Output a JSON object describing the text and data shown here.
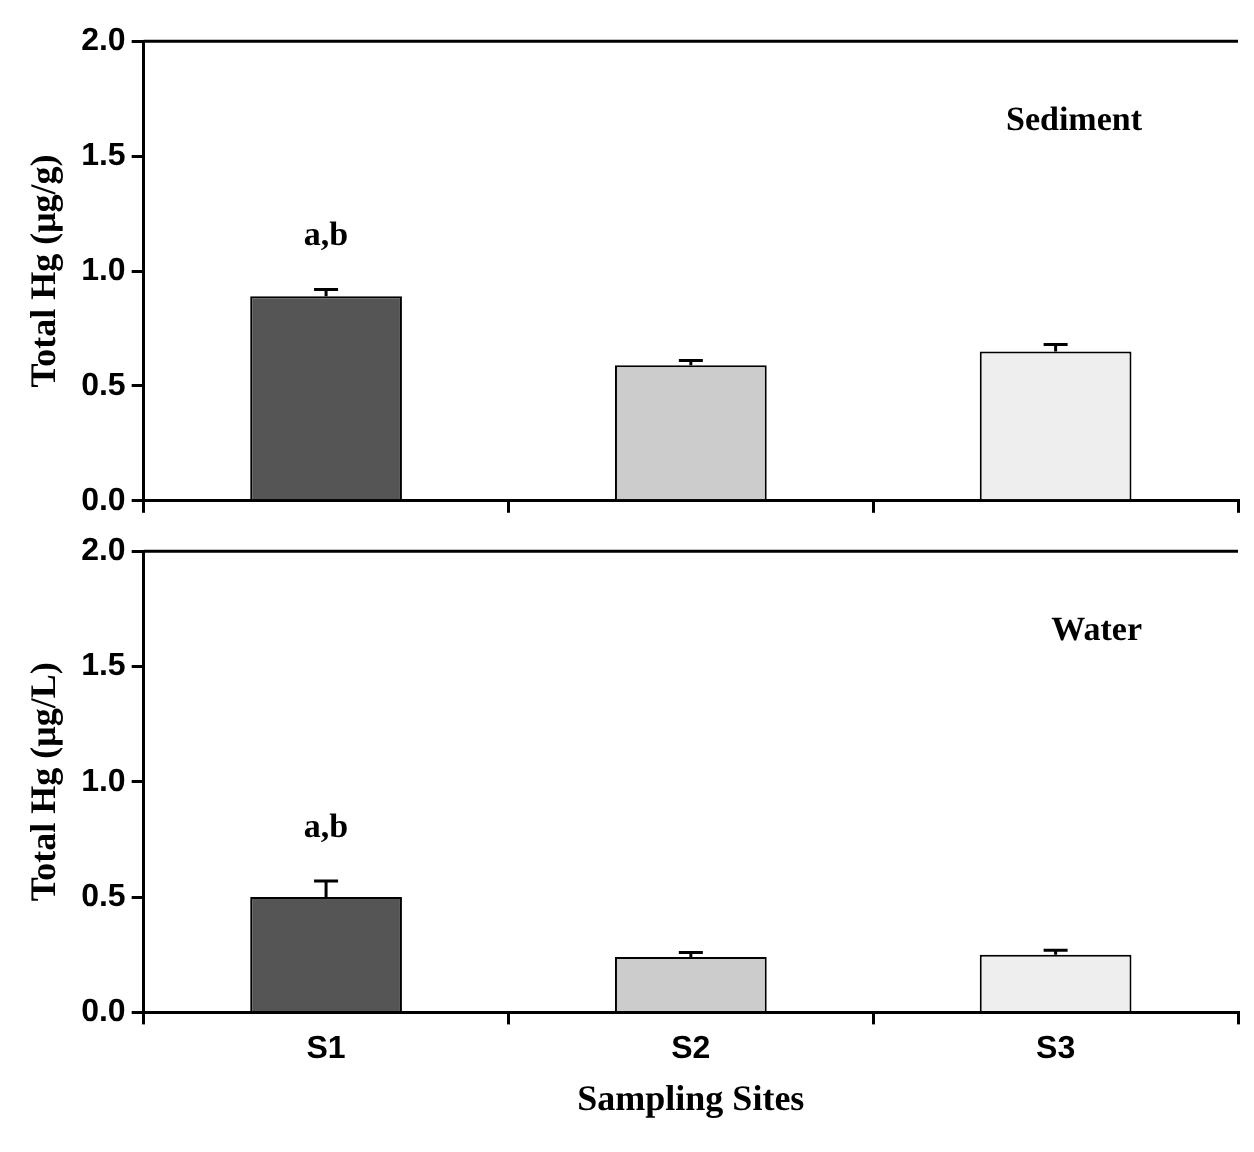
{
  "chart_data": [
    {
      "type": "bar",
      "ylabel": "Total Hg (μg/g)",
      "categories": [
        null,
        null,
        null
      ],
      "values": [
        0.89,
        0.59,
        0.65
      ],
      "errors": [
        0.03,
        0.02,
        0.03
      ],
      "colors": [
        "#555555",
        "#cccccc",
        "#eeeeee"
      ],
      "ylim": [
        0,
        2
      ],
      "yticks": [
        {
          "value": 0,
          "label": "0.0"
        },
        {
          "value": 0.5,
          "label": "0.5"
        },
        {
          "value": 1,
          "label": "1.0"
        },
        {
          "value": 1.5,
          "label": "1.5"
        },
        {
          "value": 2,
          "label": "2.0"
        }
      ],
      "tick_labels": "y",
      "annotations": [
        "Sediment",
        "a,b"
      ]
    },
    {
      "type": "bar",
      "ylabel": "Total Hg (μg/L)",
      "xlabel": "Sampling Sites",
      "categories": [
        "S1",
        "S2",
        "S3"
      ],
      "values": [
        0.5,
        0.24,
        0.25
      ],
      "errors": [
        0.07,
        0.02,
        0.02
      ],
      "colors": [
        "#555555",
        "#cccccc",
        "#eeeeee"
      ],
      "ylim": [
        0,
        2
      ],
      "yticks": [
        {
          "value": 0,
          "label": "0.0"
        },
        {
          "value": 0.5,
          "label": "0.5"
        },
        {
          "value": 1,
          "label": "1.0"
        },
        {
          "value": 1.5,
          "label": "1.5"
        },
        {
          "value": 2,
          "label": "2.0"
        }
      ],
      "annotations": [
        "Water",
        "a,b"
      ]
    }
  ]
}
